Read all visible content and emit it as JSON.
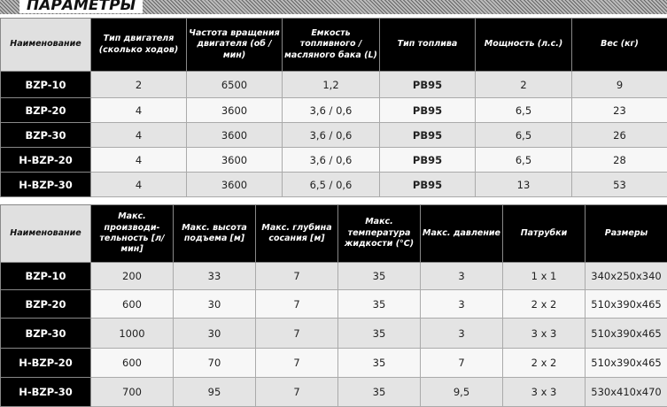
{
  "title": "ПАРАМЕТРЫ",
  "table1": {
    "headers": [
      "Наименование",
      "Тип двигателя (сколько ходов)",
      "Частота вращения двигателя (об / мин)",
      "Емкость топливного / масляного бака (L)",
      "Тип топлива",
      "Мощность (л.с.)",
      "Вес (кг)"
    ],
    "rows": [
      [
        "BZP-10",
        "2",
        "6500",
        "1,2",
        "PB95",
        "2",
        "9"
      ],
      [
        "BZP-20",
        "4",
        "3600",
        "3,6 / 0,6",
        "PB95",
        "6,5",
        "23"
      ],
      [
        "BZP-30",
        "4",
        "3600",
        "3,6 / 0,6",
        "PB95",
        "6,5",
        "26"
      ],
      [
        "H-BZP-20",
        "4",
        "3600",
        "3,6 / 0,6",
        "PB95",
        "6,5",
        "28"
      ],
      [
        "H-BZP-30",
        "4",
        "3600",
        "6,5 / 0,6",
        "PB95",
        "13",
        "53"
      ]
    ]
  },
  "table2": {
    "headers": [
      "Наименование",
      "Макс. производи-тельность [л/мин]",
      "Макс. высота подъема [м]",
      "Макс. глубина сосания [м]",
      "Макс. температура жидкости (°C)",
      "Макс. давление",
      "Патрубки",
      "Размеры"
    ],
    "rows": [
      [
        "BZP-10",
        "200",
        "33",
        "7",
        "35",
        "3",
        "1 x 1",
        "340x250x340"
      ],
      [
        "BZP-20",
        "600",
        "30",
        "7",
        "35",
        "3",
        "2 x 2",
        "510x390x465"
      ],
      [
        "BZP-30",
        "1000",
        "30",
        "7",
        "35",
        "3",
        "3 x 3",
        "510x390x465"
      ],
      [
        "H-BZP-20",
        "600",
        "70",
        "7",
        "35",
        "7",
        "2 x 2",
        "510x390x465"
      ],
      [
        "H-BZP-30",
        "700",
        "95",
        "7",
        "35",
        "9,5",
        "3 x 3",
        "530x410x470"
      ]
    ]
  }
}
